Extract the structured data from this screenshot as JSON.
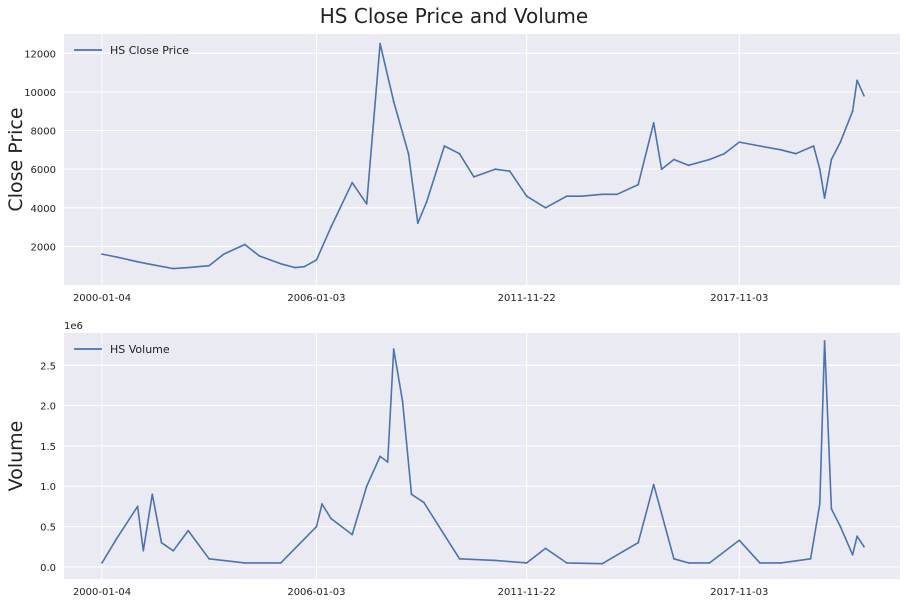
{
  "figure": {
    "title": "HS Close Price and Volume"
  },
  "chart_data": [
    {
      "type": "line",
      "title": "",
      "xlabel": "",
      "ylabel": "Close Price",
      "x_tick_labels": [
        "2000-01-04",
        "2006-01-03",
        "2011-11-22",
        "2017-11-03"
      ],
      "x_range": [
        "2000-01-04",
        "2021-04-30"
      ],
      "ylim": [
        0,
        13000
      ],
      "y_ticks": [
        2000,
        4000,
        6000,
        8000,
        10000,
        12000
      ],
      "y_tick_labels": [
        "2000",
        "4000",
        "6000",
        "8000",
        "10000",
        "12000"
      ],
      "grid": true,
      "legend": "upper-left",
      "color": "#4c72b0",
      "series": [
        {
          "name": "HS Close Price",
          "x": [
            "2000-01-04",
            "2000-06-01",
            "2001-01-02",
            "2001-06-01",
            "2002-01-02",
            "2002-06-03",
            "2003-01-02",
            "2003-06-02",
            "2004-01-02",
            "2004-06-01",
            "2005-01-04",
            "2005-06-01",
            "2005-09-01",
            "2006-01-04",
            "2006-06-01",
            "2007-01-04",
            "2007-06-01",
            "2007-10-16",
            "2008-03-03",
            "2008-08-01",
            "2008-11-04",
            "2009-02-02",
            "2009-08-03",
            "2010-01-04",
            "2010-06-01",
            "2011-01-04",
            "2011-06-01",
            "2011-11-22",
            "2012-06-01",
            "2013-01-04",
            "2013-06-03",
            "2014-01-02",
            "2014-06-03",
            "2015-01-05",
            "2015-06-12",
            "2015-09-01",
            "2016-01-04",
            "2016-06-01",
            "2017-01-03",
            "2017-06-01",
            "2017-11-03",
            "2018-06-01",
            "2019-01-02",
            "2019-06-03",
            "2019-12-02",
            "2020-02-03",
            "2020-03-23",
            "2020-06-01",
            "2020-09-01",
            "2021-01-04",
            "2021-02-18",
            "2021-04-30"
          ],
          "values": [
            1600,
            1450,
            1200,
            1050,
            850,
            900,
            1000,
            1600,
            2100,
            1500,
            1100,
            900,
            950,
            1300,
            3000,
            5300,
            4200,
            12500,
            9500,
            6800,
            3200,
            4300,
            7200,
            6800,
            5600,
            6000,
            5900,
            4600,
            4000,
            4600,
            4600,
            4700,
            4700,
            5200,
            8400,
            6000,
            6500,
            6200,
            6500,
            6800,
            7400,
            7200,
            7000,
            6800,
            7200,
            6000,
            4500,
            6500,
            7400,
            9000,
            10600,
            9800
          ]
        }
      ]
    },
    {
      "type": "line",
      "title": "",
      "xlabel": "",
      "ylabel": "Volume",
      "axis_offset_label": "1e6",
      "x_tick_labels": [
        "2000-01-04",
        "2006-01-03",
        "2011-11-22",
        "2017-11-03"
      ],
      "x_range": [
        "2000-01-04",
        "2021-04-30"
      ],
      "ylim": [
        -0.15,
        2.9
      ],
      "y_ticks": [
        0.0,
        0.5,
        1.0,
        1.5,
        2.0,
        2.5
      ],
      "y_tick_labels": [
        "0.0",
        "0.5",
        "1.0",
        "1.5",
        "2.0",
        "2.5"
      ],
      "grid": true,
      "legend": "upper-left",
      "color": "#4c72b0",
      "series": [
        {
          "name": "HS Volume",
          "x": [
            "2000-01-04",
            "2000-06-01",
            "2001-01-02",
            "2001-03-01",
            "2001-06-01",
            "2001-09-03",
            "2002-01-02",
            "2002-06-03",
            "2003-01-02",
            "2004-01-02",
            "2005-01-04",
            "2006-01-04",
            "2006-03-01",
            "2006-06-01",
            "2007-01-04",
            "2007-06-01",
            "2007-10-16",
            "2008-01-02",
            "2008-03-03",
            "2008-06-02",
            "2008-09-01",
            "2009-01-05",
            "2010-01-04",
            "2011-01-04",
            "2011-11-22",
            "2012-06-01",
            "2013-01-04",
            "2014-01-02",
            "2015-01-05",
            "2015-06-12",
            "2016-01-04",
            "2016-06-01",
            "2017-01-03",
            "2017-11-03",
            "2018-06-01",
            "2019-01-02",
            "2019-11-01",
            "2020-02-03",
            "2020-03-23",
            "2020-06-01",
            "2020-09-01",
            "2021-01-04",
            "2021-02-18",
            "2021-04-30"
          ],
          "values": [
            0.05,
            0.35,
            0.75,
            0.2,
            0.9,
            0.3,
            0.2,
            0.45,
            0.1,
            0.05,
            0.05,
            0.5,
            0.78,
            0.6,
            0.4,
            1.0,
            1.37,
            1.3,
            2.7,
            2.05,
            0.9,
            0.8,
            0.1,
            0.08,
            0.05,
            0.23,
            0.05,
            0.04,
            0.3,
            1.02,
            0.1,
            0.05,
            0.05,
            0.33,
            0.05,
            0.05,
            0.1,
            0.78,
            2.8,
            0.72,
            0.5,
            0.15,
            0.38,
            0.25
          ]
        }
      ]
    }
  ]
}
